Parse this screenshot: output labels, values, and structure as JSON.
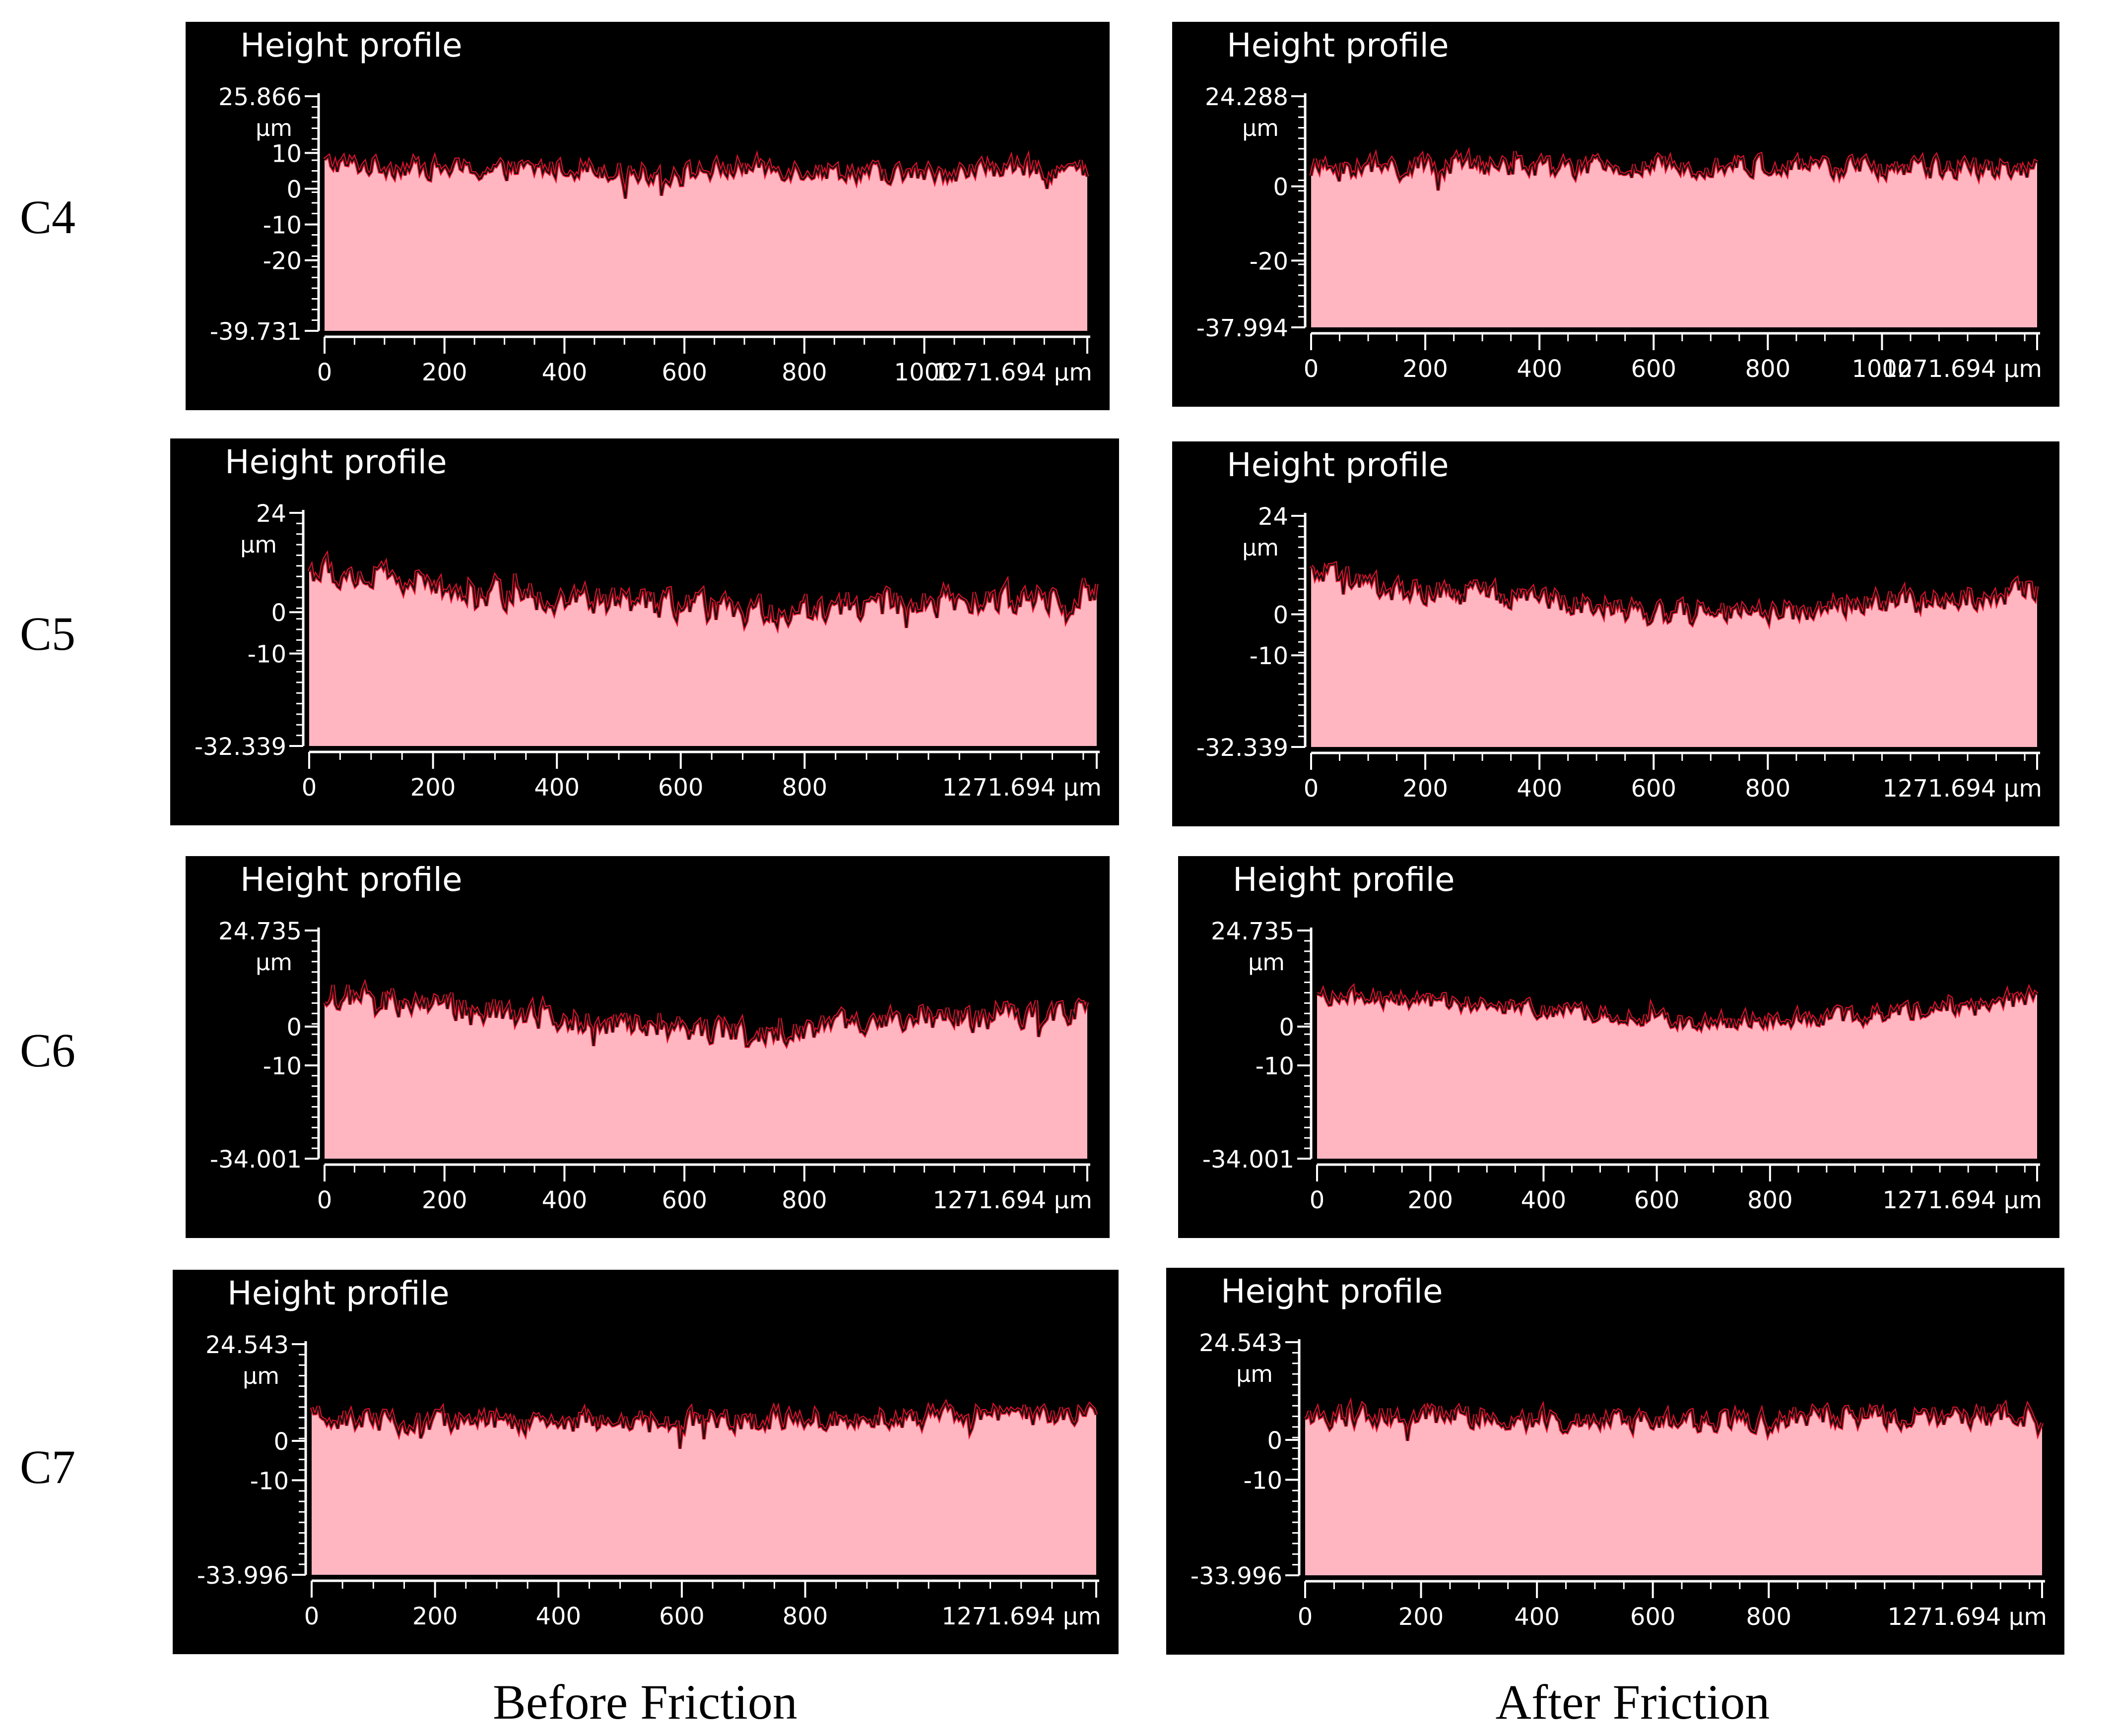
{
  "row_labels": [
    "C4",
    "C5",
    "C6",
    "C7"
  ],
  "column_labels": [
    "Before Friction",
    "After Friction"
  ],
  "colors": {
    "panel_background": "#000000",
    "profile_fill": "#FFB6C1",
    "profile_edge": "#E8102A",
    "axis_and_text": "#FFFFFF",
    "page_background": "#FFFFFF"
  },
  "chart_data": [
    {
      "type": "area",
      "row": "C4",
      "column": "Before Friction",
      "title": "Height profile",
      "ylabel_unit": "µm",
      "xlim": [
        0,
        1271.694
      ],
      "ylim": [
        -39.731,
        25.866
      ],
      "y_ticks": [
        -39.731,
        -20,
        -10,
        0,
        10,
        25.866
      ],
      "x_ticks": [
        0,
        200,
        400,
        600,
        800,
        1000,
        1271.694
      ],
      "x_unit": "µm",
      "profile_baseline": 6,
      "profile_trend": [
        7,
        6,
        5,
        6,
        4,
        6,
        5,
        4,
        6,
        5
      ],
      "surface_roughness_amplitude": 4,
      "grid": false,
      "legend": "none"
    },
    {
      "type": "area",
      "row": "C4",
      "column": "After Friction",
      "title": "Height profile",
      "ylabel_unit": "µm",
      "xlim": [
        0,
        1271.694
      ],
      "ylim": [
        -37.994,
        24.288
      ],
      "y_ticks": [
        -37.994,
        -20,
        0,
        24.288
      ],
      "x_ticks": [
        0,
        200,
        400,
        600,
        800,
        1000,
        1271.694
      ],
      "x_unit": "µm",
      "profile_baseline": 5,
      "profile_trend": [
        5,
        5,
        6,
        5,
        5,
        6,
        5,
        5,
        5,
        5
      ],
      "surface_roughness_amplitude": 4,
      "grid": false,
      "legend": "none"
    },
    {
      "type": "area",
      "row": "C5",
      "column": "Before Friction",
      "title": "Height profile",
      "ylabel_unit": "µm",
      "xlim": [
        0,
        1271.694
      ],
      "ylim": [
        -32.339,
        24.0
      ],
      "y_ticks": [
        -32.339,
        -10,
        0,
        24.0
      ],
      "x_ticks": [
        0,
        200,
        400,
        600,
        800,
        1271.694
      ],
      "x_unit": "µm",
      "profile_baseline": 4,
      "profile_trend": [
        10,
        8,
        5,
        3,
        2,
        0,
        1,
        2,
        3,
        5
      ],
      "surface_roughness_amplitude": 5,
      "grid": false,
      "legend": "none"
    },
    {
      "type": "area",
      "row": "C5",
      "column": "After Friction",
      "title": "Height profile",
      "ylabel_unit": "µm",
      "xlim": [
        0,
        1271.694
      ],
      "ylim": [
        -32.339,
        24.0
      ],
      "y_ticks": [
        -32.339,
        -10,
        0,
        24.0
      ],
      "x_ticks": [
        0,
        200,
        400,
        600,
        800,
        1271.694
      ],
      "x_unit": "µm",
      "profile_baseline": 4,
      "profile_trend": [
        10,
        6,
        5,
        4,
        1,
        0,
        1,
        3,
        4,
        6
      ],
      "surface_roughness_amplitude": 4,
      "grid": false,
      "legend": "none"
    },
    {
      "type": "area",
      "row": "C6",
      "column": "Before Friction",
      "title": "Height profile",
      "ylabel_unit": "µm",
      "xlim": [
        0,
        1271.694
      ],
      "ylim": [
        -34.001,
        24.735
      ],
      "y_ticks": [
        -34.001,
        -10,
        0,
        24.735
      ],
      "x_ticks": [
        0,
        200,
        400,
        600,
        800,
        1271.694
      ],
      "x_unit": "µm",
      "profile_baseline": 3,
      "profile_trend": [
        8,
        6,
        4,
        2,
        0,
        -1,
        0,
        1,
        3,
        5
      ],
      "surface_roughness_amplitude": 5,
      "grid": false,
      "legend": "none"
    },
    {
      "type": "area",
      "row": "C6",
      "column": "After Friction",
      "title": "Height profile",
      "ylabel_unit": "µm",
      "xlim": [
        0,
        1271.694
      ],
      "ylim": [
        -34.001,
        24.735
      ],
      "y_ticks": [
        -34.001,
        -10,
        0,
        24.735
      ],
      "x_ticks": [
        0,
        200,
        400,
        600,
        800,
        1271.694
      ],
      "x_unit": "µm",
      "profile_baseline": 4,
      "profile_trend": [
        8,
        7,
        6,
        4,
        2,
        1,
        2,
        3,
        5,
        8
      ],
      "surface_roughness_amplitude": 3,
      "grid": false,
      "legend": "none"
    },
    {
      "type": "area",
      "row": "C7",
      "column": "Before Friction",
      "title": "Height profile",
      "ylabel_unit": "µm",
      "xlim": [
        0,
        1271.694
      ],
      "ylim": [
        -33.996,
        24.543
      ],
      "y_ticks": [
        -33.996,
        -10,
        0,
        24.543
      ],
      "x_ticks": [
        0,
        200,
        400,
        600,
        800,
        1271.694
      ],
      "x_unit": "µm",
      "profile_baseline": 5,
      "profile_trend": [
        6,
        5,
        5,
        5,
        5,
        5,
        6,
        6,
        7,
        6
      ],
      "surface_roughness_amplitude": 4,
      "grid": false,
      "legend": "none"
    },
    {
      "type": "area",
      "row": "C7",
      "column": "After Friction",
      "title": "Height profile",
      "ylabel_unit": "µm",
      "xlim": [
        0,
        1271.694
      ],
      "ylim": [
        -33.996,
        24.543
      ],
      "y_ticks": [
        -33.996,
        -10,
        0,
        24.543
      ],
      "x_ticks": [
        0,
        200,
        400,
        600,
        800,
        1271.694
      ],
      "x_unit": "µm",
      "profile_baseline": 5,
      "profile_trend": [
        6,
        6,
        6,
        5,
        5,
        5,
        6,
        6,
        6,
        6
      ],
      "surface_roughness_amplitude": 4,
      "grid": false,
      "legend": "none"
    }
  ]
}
